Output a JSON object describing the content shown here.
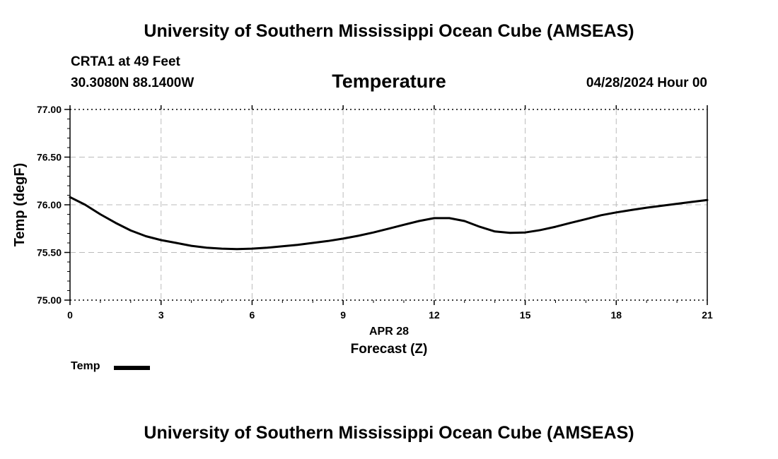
{
  "header": {
    "title": "University of Southern Mississippi Ocean Cube (AMSEAS)",
    "station": "CRTA1 at 49 Feet",
    "coordinates": "30.3080N  88.1400W",
    "variable": "Temperature",
    "timestamp": "04/28/2024 Hour 00"
  },
  "footer": {
    "title": "University of Southern Mississippi Ocean Cube (AMSEAS)"
  },
  "legend": {
    "label": "Temp",
    "color": "#000000"
  },
  "chart_data": {
    "type": "line",
    "title": "Temperature",
    "xlabel": "Forecast (Z)",
    "xsublabel": "APR 28",
    "ylabel": "Temp (degF)",
    "xlim": [
      0,
      21
    ],
    "ylim": [
      75.0,
      77.0
    ],
    "xticks": [
      0,
      3,
      6,
      9,
      12,
      15,
      18,
      21
    ],
    "yticks": [
      "75.00",
      "75.50",
      "76.00",
      "76.50",
      "77.00"
    ],
    "grid": true,
    "legend_position": "bottom-left",
    "series": [
      {
        "name": "Temp",
        "color": "#000000",
        "x": [
          0,
          0.5,
          1,
          1.5,
          2,
          2.5,
          3,
          3.5,
          4,
          4.5,
          5,
          5.5,
          6,
          6.5,
          7,
          7.5,
          8,
          8.5,
          9,
          9.5,
          10,
          10.5,
          11,
          11.5,
          12,
          12.5,
          13,
          13.5,
          14,
          14.5,
          15,
          15.5,
          16,
          16.5,
          17,
          17.5,
          18,
          18.5,
          19,
          19.5,
          20,
          20.5,
          21
        ],
        "values": [
          76.08,
          76.0,
          75.9,
          75.81,
          75.73,
          75.67,
          75.63,
          75.6,
          75.57,
          75.55,
          75.54,
          75.535,
          75.54,
          75.55,
          75.565,
          75.58,
          75.6,
          75.62,
          75.645,
          75.675,
          75.71,
          75.75,
          75.79,
          75.83,
          75.86,
          75.86,
          75.83,
          75.77,
          75.72,
          75.705,
          75.71,
          75.735,
          75.77,
          75.81,
          75.85,
          75.89,
          75.92,
          75.945,
          75.97,
          75.99,
          76.01,
          76.03,
          76.05
        ]
      }
    ]
  }
}
